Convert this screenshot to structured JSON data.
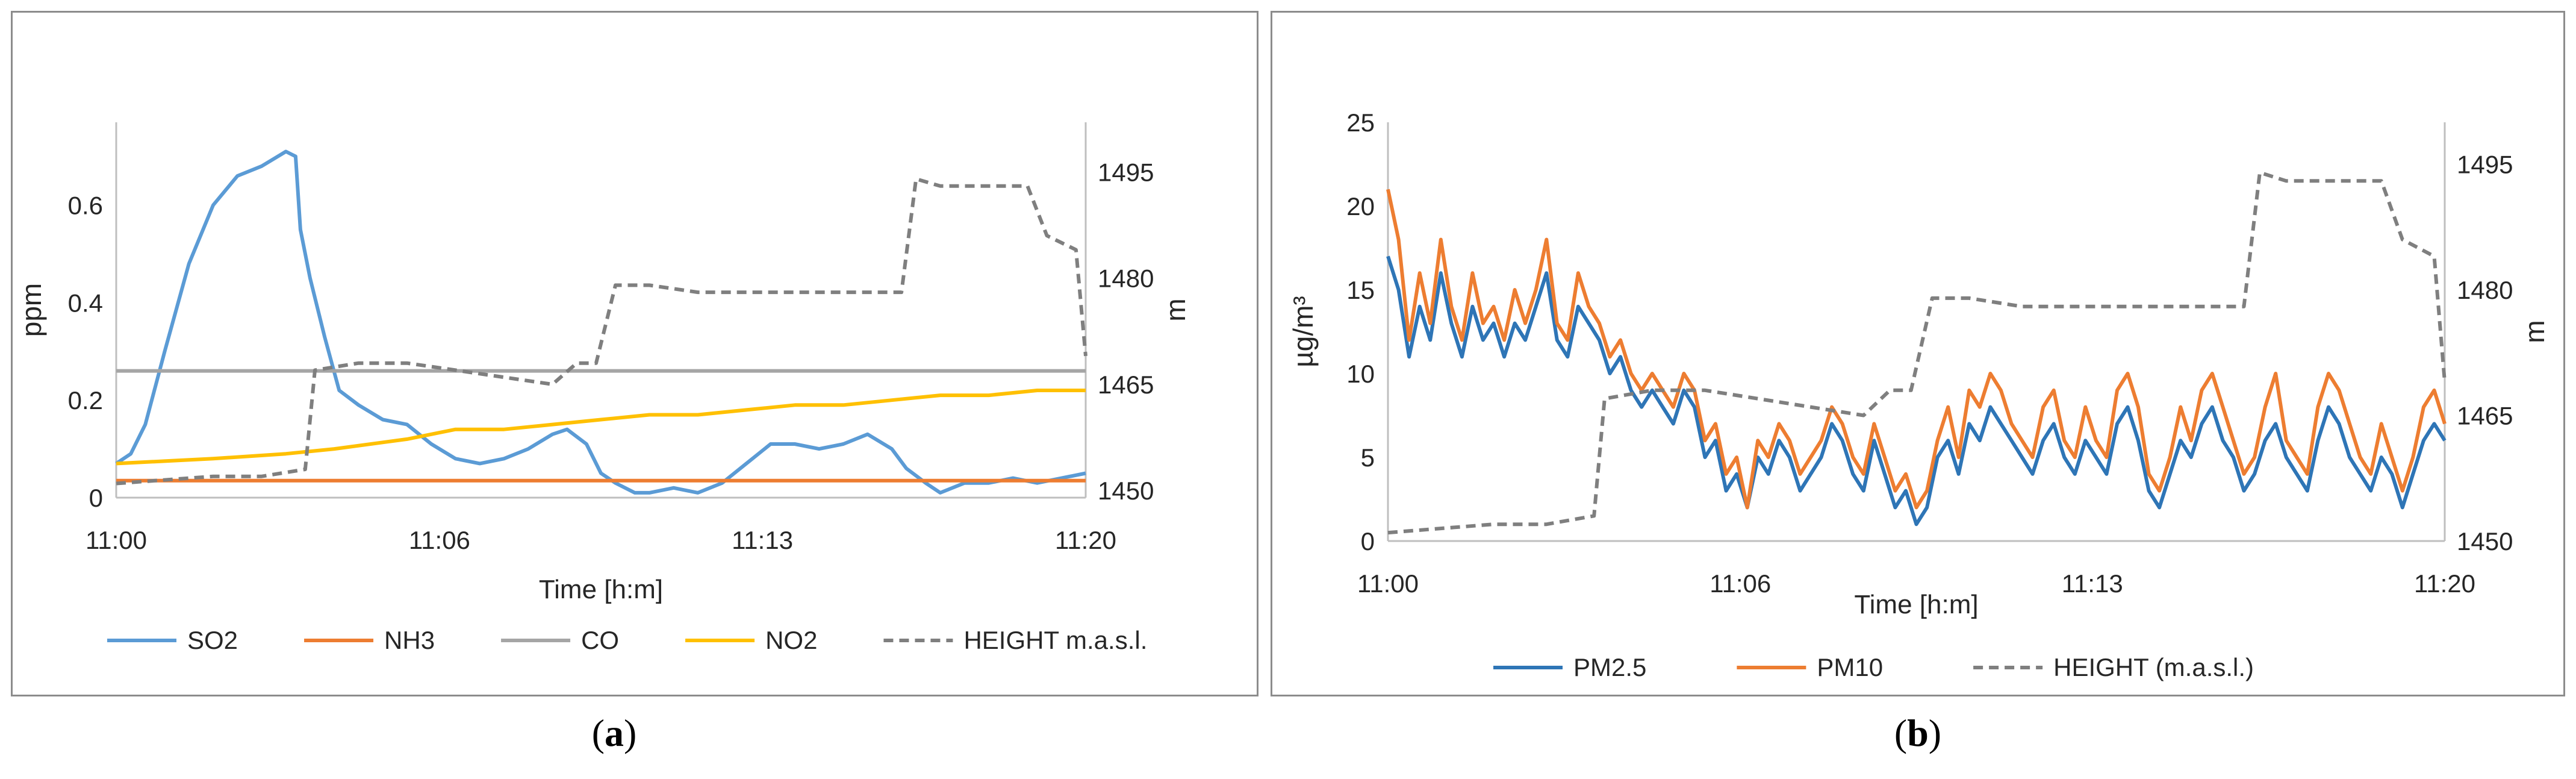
{
  "panels": {
    "a": {
      "label_open": "(",
      "letter": "a",
      "label_close": ")"
    },
    "b": {
      "label_open": "(",
      "letter": "b",
      "label_close": ")"
    }
  },
  "chart_data": [
    {
      "id": "a",
      "type": "line",
      "title": "",
      "xlabel": "Time [h:m]",
      "ylabel": "ppm",
      "y2label": "m",
      "x_unit": "minutes after 11:00",
      "xlim": [
        0,
        20
      ],
      "ylim": [
        0,
        0.77
      ],
      "y2lim": [
        1449,
        1502
      ],
      "xticks": [
        {
          "v": 0,
          "label": "11:00"
        },
        {
          "v": 6.67,
          "label": "11:06"
        },
        {
          "v": 13.33,
          "label": "11:13"
        },
        {
          "v": 20,
          "label": "11:20"
        }
      ],
      "yticks": [
        {
          "v": 0,
          "label": "0"
        },
        {
          "v": 0.2,
          "label": "0.2"
        },
        {
          "v": 0.4,
          "label": "0.4"
        },
        {
          "v": 0.6,
          "label": "0.6"
        }
      ],
      "y2ticks": [
        {
          "v": 1450,
          "label": "1450"
        },
        {
          "v": 1465,
          "label": "1465"
        },
        {
          "v": 1480,
          "label": "1480"
        },
        {
          "v": 1495,
          "label": "1495"
        }
      ],
      "legend_position": "bottom",
      "series": [
        {
          "name": "SO2",
          "color": "#5b9bd5",
          "axis": "left",
          "dash": false,
          "x": [
            0,
            0.3,
            0.6,
            1,
            1.5,
            2,
            2.5,
            3,
            3.5,
            3.7,
            3.8,
            4,
            4.3,
            4.6,
            5,
            5.5,
            6,
            6.5,
            7,
            7.5,
            8,
            8.5,
            9,
            9.3,
            9.7,
            10,
            10.3,
            10.7,
            11,
            11.5,
            12,
            12.5,
            13,
            13.5,
            14,
            14.5,
            15,
            15.5,
            16,
            16.3,
            16.7,
            17,
            17.5,
            18,
            18.5,
            19,
            19.5,
            20
          ],
          "values": [
            0.07,
            0.09,
            0.15,
            0.3,
            0.48,
            0.6,
            0.66,
            0.68,
            0.71,
            0.7,
            0.55,
            0.45,
            0.33,
            0.22,
            0.19,
            0.16,
            0.15,
            0.11,
            0.08,
            0.07,
            0.08,
            0.1,
            0.13,
            0.14,
            0.11,
            0.05,
            0.03,
            0.01,
            0.01,
            0.02,
            0.01,
            0.03,
            0.07,
            0.11,
            0.11,
            0.1,
            0.11,
            0.13,
            0.1,
            0.06,
            0.03,
            0.01,
            0.03,
            0.03,
            0.04,
            0.03,
            0.04,
            0.05
          ]
        },
        {
          "name": "NH3",
          "color": "#ed7d31",
          "axis": "left",
          "dash": false,
          "x": [
            0,
            20
          ],
          "values": [
            0.035,
            0.035
          ]
        },
        {
          "name": "CO",
          "color": "#a5a5a5",
          "axis": "left",
          "dash": false,
          "x": [
            0,
            20
          ],
          "values": [
            0.26,
            0.26
          ]
        },
        {
          "name": "NO2",
          "color": "#ffc000",
          "axis": "left",
          "dash": false,
          "x": [
            0,
            2,
            3.5,
            4.5,
            6,
            7,
            8,
            9,
            10,
            11,
            12,
            13,
            14,
            15,
            16,
            17,
            18,
            19,
            20
          ],
          "values": [
            0.07,
            0.08,
            0.09,
            0.1,
            0.12,
            0.14,
            0.14,
            0.15,
            0.16,
            0.17,
            0.17,
            0.18,
            0.19,
            0.19,
            0.2,
            0.21,
            0.21,
            0.22,
            0.22
          ]
        },
        {
          "name": "HEIGHT m.a.s.l.",
          "color": "#7f7f7f",
          "axis": "right",
          "dash": true,
          "x": [
            0,
            1,
            2,
            3,
            3.9,
            4.1,
            5,
            6,
            7,
            8,
            9,
            9.5,
            9.9,
            10.3,
            11,
            12,
            13,
            14,
            15,
            15.5,
            15.9,
            16.2,
            16.5,
            17,
            18,
            18.8,
            19.2,
            19.8,
            20
          ],
          "values": [
            1451,
            1451.5,
            1452,
            1452,
            1453,
            1467,
            1468,
            1468,
            1467,
            1466,
            1465,
            1468,
            1468,
            1479,
            1479,
            1478,
            1478,
            1478,
            1478,
            1478,
            1478,
            1478,
            1494,
            1493,
            1493,
            1493,
            1486,
            1484,
            1469
          ]
        }
      ]
    },
    {
      "id": "b",
      "type": "line",
      "title": "",
      "xlabel": "Time [h:m]",
      "ylabel": "µg/m³",
      "y2label": "m",
      "x_unit": "minutes after 11:00",
      "xlim": [
        0,
        20
      ],
      "ylim": [
        0,
        25
      ],
      "y2lim": [
        1450,
        1500
      ],
      "xticks": [
        {
          "v": 0,
          "label": "11:00"
        },
        {
          "v": 6.67,
          "label": "11:06"
        },
        {
          "v": 13.33,
          "label": "11:13"
        },
        {
          "v": 20,
          "label": "11:20"
        }
      ],
      "yticks": [
        {
          "v": 0,
          "label": "0"
        },
        {
          "v": 5,
          "label": "5"
        },
        {
          "v": 10,
          "label": "10"
        },
        {
          "v": 15,
          "label": "15"
        },
        {
          "v": 20,
          "label": "20"
        },
        {
          "v": 25,
          "label": "25"
        }
      ],
      "y2ticks": [
        {
          "v": 1450,
          "label": "1450"
        },
        {
          "v": 1465,
          "label": "1465"
        },
        {
          "v": 1480,
          "label": "1480"
        },
        {
          "v": 1495,
          "label": "1495"
        }
      ],
      "legend_position": "bottom",
      "series": [
        {
          "name": "PM2.5",
          "color": "#2e75b6",
          "axis": "left",
          "dash": false,
          "x": [
            0,
            0.2,
            0.4,
            0.6,
            0.8,
            1,
            1.2,
            1.4,
            1.6,
            1.8,
            2,
            2.2,
            2.4,
            2.6,
            2.8,
            3,
            3.2,
            3.4,
            3.6,
            3.8,
            4,
            4.2,
            4.4,
            4.6,
            4.8,
            5,
            5.2,
            5.4,
            5.6,
            5.8,
            6,
            6.2,
            6.4,
            6.6,
            6.8,
            7,
            7.2,
            7.4,
            7.6,
            7.8,
            8,
            8.2,
            8.4,
            8.6,
            8.8,
            9,
            9.2,
            9.4,
            9.6,
            9.8,
            10,
            10.2,
            10.4,
            10.6,
            10.8,
            11,
            11.2,
            11.4,
            11.6,
            11.8,
            12,
            12.2,
            12.4,
            12.6,
            12.8,
            13,
            13.2,
            13.4,
            13.6,
            13.8,
            14,
            14.2,
            14.4,
            14.6,
            14.8,
            15,
            15.2,
            15.4,
            15.6,
            15.8,
            16,
            16.2,
            16.4,
            16.6,
            16.8,
            17,
            17.2,
            17.4,
            17.6,
            17.8,
            18,
            18.2,
            18.4,
            18.6,
            18.8,
            19,
            19.2,
            19.4,
            19.6,
            19.8,
            20
          ],
          "values": [
            17,
            15,
            11,
            14,
            12,
            16,
            13,
            11,
            14,
            12,
            13,
            11,
            13,
            12,
            14,
            16,
            12,
            11,
            14,
            13,
            12,
            10,
            11,
            9,
            8,
            9,
            8,
            7,
            9,
            8,
            5,
            6,
            3,
            4,
            2,
            5,
            4,
            6,
            5,
            3,
            4,
            5,
            7,
            6,
            4,
            3,
            6,
            4,
            2,
            3,
            1,
            2,
            5,
            6,
            4,
            7,
            6,
            8,
            7,
            6,
            5,
            4,
            6,
            7,
            5,
            4,
            6,
            5,
            4,
            7,
            8,
            6,
            3,
            2,
            4,
            6,
            5,
            7,
            8,
            6,
            5,
            3,
            4,
            6,
            7,
            5,
            4,
            3,
            6,
            8,
            7,
            5,
            4,
            3,
            5,
            4,
            2,
            4,
            6,
            7,
            6
          ]
        },
        {
          "name": "PM10",
          "color": "#ed7d31",
          "axis": "left",
          "dash": false,
          "x": [
            0,
            0.2,
            0.4,
            0.6,
            0.8,
            1,
            1.2,
            1.4,
            1.6,
            1.8,
            2,
            2.2,
            2.4,
            2.6,
            2.8,
            3,
            3.2,
            3.4,
            3.6,
            3.8,
            4,
            4.2,
            4.4,
            4.6,
            4.8,
            5,
            5.2,
            5.4,
            5.6,
            5.8,
            6,
            6.2,
            6.4,
            6.6,
            6.8,
            7,
            7.2,
            7.4,
            7.6,
            7.8,
            8,
            8.2,
            8.4,
            8.6,
            8.8,
            9,
            9.2,
            9.4,
            9.6,
            9.8,
            10,
            10.2,
            10.4,
            10.6,
            10.8,
            11,
            11.2,
            11.4,
            11.6,
            11.8,
            12,
            12.2,
            12.4,
            12.6,
            12.8,
            13,
            13.2,
            13.4,
            13.6,
            13.8,
            14,
            14.2,
            14.4,
            14.6,
            14.8,
            15,
            15.2,
            15.4,
            15.6,
            15.8,
            16,
            16.2,
            16.4,
            16.6,
            16.8,
            17,
            17.2,
            17.4,
            17.6,
            17.8,
            18,
            18.2,
            18.4,
            18.6,
            18.8,
            19,
            19.2,
            19.4,
            19.6,
            19.8,
            20
          ],
          "values": [
            21,
            18,
            12,
            16,
            13,
            18,
            14,
            12,
            16,
            13,
            14,
            12,
            15,
            13,
            15,
            18,
            13,
            12,
            16,
            14,
            13,
            11,
            12,
            10,
            9,
            10,
            9,
            8,
            10,
            9,
            6,
            7,
            4,
            5,
            2,
            6,
            5,
            7,
            6,
            4,
            5,
            6,
            8,
            7,
            5,
            4,
            7,
            5,
            3,
            4,
            2,
            3,
            6,
            8,
            5,
            9,
            8,
            10,
            9,
            7,
            6,
            5,
            8,
            9,
            6,
            5,
            8,
            6,
            5,
            9,
            10,
            8,
            4,
            3,
            5,
            8,
            6,
            9,
            10,
            8,
            6,
            4,
            5,
            8,
            10,
            6,
            5,
            4,
            8,
            10,
            9,
            7,
            5,
            4,
            7,
            5,
            3,
            5,
            8,
            9,
            7
          ]
        },
        {
          "name": "HEIGHT (m.a.s.l.)",
          "color": "#7f7f7f",
          "axis": "right",
          "dash": true,
          "x": [
            0,
            1,
            2,
            3,
            3.9,
            4.1,
            5,
            6,
            7,
            8,
            9,
            9.5,
            9.9,
            10.3,
            11,
            12,
            13,
            14,
            15,
            15.5,
            15.9,
            16.2,
            16.5,
            17,
            18,
            18.8,
            19.2,
            19.8,
            20
          ],
          "values": [
            1451,
            1451.5,
            1452,
            1452,
            1453,
            1467,
            1468,
            1468,
            1467,
            1466,
            1465,
            1468,
            1468,
            1479,
            1479,
            1478,
            1478,
            1478,
            1478,
            1478,
            1478,
            1478,
            1494,
            1493,
            1493,
            1493,
            1486,
            1484,
            1469
          ]
        }
      ]
    }
  ]
}
